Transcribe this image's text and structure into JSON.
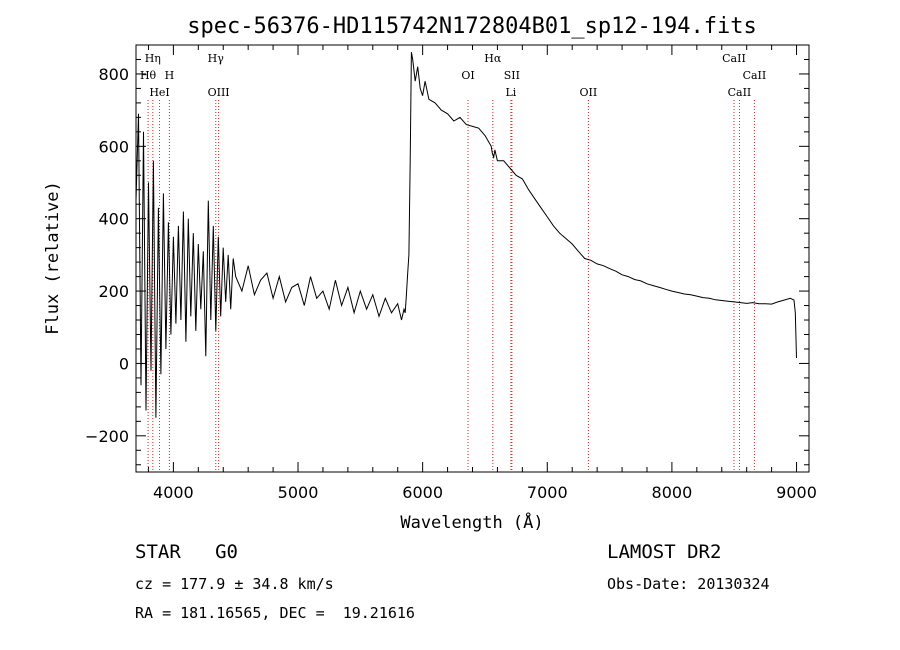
{
  "chart_data": {
    "type": "line",
    "title": "spec-56376-HD115742N172804B01_sp12-194.fits",
    "xlabel": "Wavelength (Å)",
    "ylabel": "Flux (relative)",
    "xlim": [
      3700,
      9100
    ],
    "ylim": [
      -300,
      880
    ],
    "xticks": [
      4000,
      5000,
      6000,
      7000,
      8000,
      9000
    ],
    "yticks": [
      -200,
      0,
      200,
      400,
      600,
      800
    ],
    "grid": false,
    "series": [
      {
        "x": [
          3700,
          3720,
          3740,
          3760,
          3780,
          3800,
          3820,
          3840,
          3860,
          3880,
          3900,
          3920,
          3940,
          3960,
          3980,
          4000,
          4020,
          4040,
          4060,
          4080,
          4100,
          4120,
          4140,
          4160,
          4180,
          4200,
          4220,
          4240,
          4260,
          4280,
          4300,
          4320,
          4340,
          4360,
          4380,
          4400,
          4420,
          4440,
          4460,
          4480,
          4500,
          4550,
          4600,
          4650,
          4700,
          4750,
          4800,
          4850,
          4900,
          4950,
          5000,
          5050,
          5100,
          5150,
          5200,
          5250,
          5300,
          5350,
          5400,
          5450,
          5500,
          5550,
          5600,
          5650,
          5700,
          5750,
          5800,
          5830,
          5850,
          5860,
          5870,
          5880,
          5890,
          5900,
          5910,
          5920,
          5940,
          5960,
          5980,
          6000,
          6020,
          6050,
          6100,
          6150,
          6200,
          6250,
          6300,
          6350,
          6400,
          6450,
          6500,
          6550,
          6560,
          6570,
          6580,
          6600,
          6650,
          6700,
          6750,
          6800,
          6850,
          6900,
          6950,
          7000,
          7050,
          7100,
          7150,
          7200,
          7250,
          7300,
          7350,
          7400,
          7450,
          7500,
          7550,
          7600,
          7650,
          7700,
          7750,
          7800,
          7850,
          7900,
          7950,
          8000,
          8050,
          8100,
          8150,
          8200,
          8250,
          8300,
          8350,
          8400,
          8450,
          8500,
          8550,
          8600,
          8650,
          8700,
          8750,
          8800,
          8850,
          8900,
          8950,
          8980,
          8990,
          9000
        ],
        "y": [
          450,
          690,
          -60,
          640,
          -130,
          500,
          -20,
          560,
          -150,
          430,
          -30,
          470,
          40,
          390,
          80,
          350,
          110,
          380,
          120,
          420,
          60,
          400,
          130,
          360,
          90,
          330,
          150,
          310,
          20,
          450,
          120,
          380,
          90,
          350,
          130,
          320,
          170,
          300,
          150,
          290,
          240,
          200,
          270,
          190,
          230,
          250,
          180,
          240,
          170,
          210,
          220,
          160,
          240,
          180,
          200,
          150,
          230,
          160,
          210,
          140,
          200,
          150,
          190,
          130,
          180,
          140,
          165,
          120,
          150,
          140,
          190,
          250,
          300,
          560,
          860,
          840,
          780,
          820,
          760,
          740,
          780,
          730,
          720,
          700,
          690,
          670,
          680,
          660,
          655,
          650,
          630,
          600,
          580,
          570,
          590,
          560,
          560,
          540,
          520,
          510,
          480,
          455,
          430,
          405,
          380,
          360,
          345,
          330,
          310,
          290,
          285,
          275,
          270,
          262,
          255,
          245,
          240,
          232,
          228,
          220,
          215,
          210,
          205,
          200,
          196,
          192,
          190,
          186,
          182,
          180,
          176,
          174,
          172,
          170,
          168,
          166,
          168,
          165,
          165,
          164,
          170,
          175,
          180,
          175,
          140,
          15
        ]
      }
    ],
    "lines": [
      {
        "label": "Hη",
        "wavelength": 3835
      },
      {
        "label": "Hθ",
        "wavelength": 3797
      },
      {
        "label": "H",
        "wavelength": 3968
      },
      {
        "label": "HeI",
        "wavelength": 3889
      },
      {
        "label": "Hγ",
        "wavelength": 4340
      },
      {
        "label": "OIII",
        "wavelength": 4363
      },
      {
        "label": "OI",
        "wavelength": 6364
      },
      {
        "label": "Hα",
        "wavelength": 6563
      },
      {
        "label": "SII",
        "wavelength": 6716
      },
      {
        "label": "Li",
        "wavelength": 6708
      },
      {
        "label": "OII",
        "wavelength": 7330
      },
      {
        "label": "CaII",
        "wavelength": 8498
      },
      {
        "label": "CaII",
        "wavelength": 8662
      },
      {
        "label": "CaII",
        "wavelength": 8542
      }
    ]
  },
  "info": {
    "class": "STAR   G0",
    "survey": "LAMOST DR2",
    "cz": "cz = 177.9 ± 34.8 km/s",
    "obs_date": "Obs-Date: 20130324",
    "coords": "RA = 181.16565, DEC =  19.21616"
  }
}
